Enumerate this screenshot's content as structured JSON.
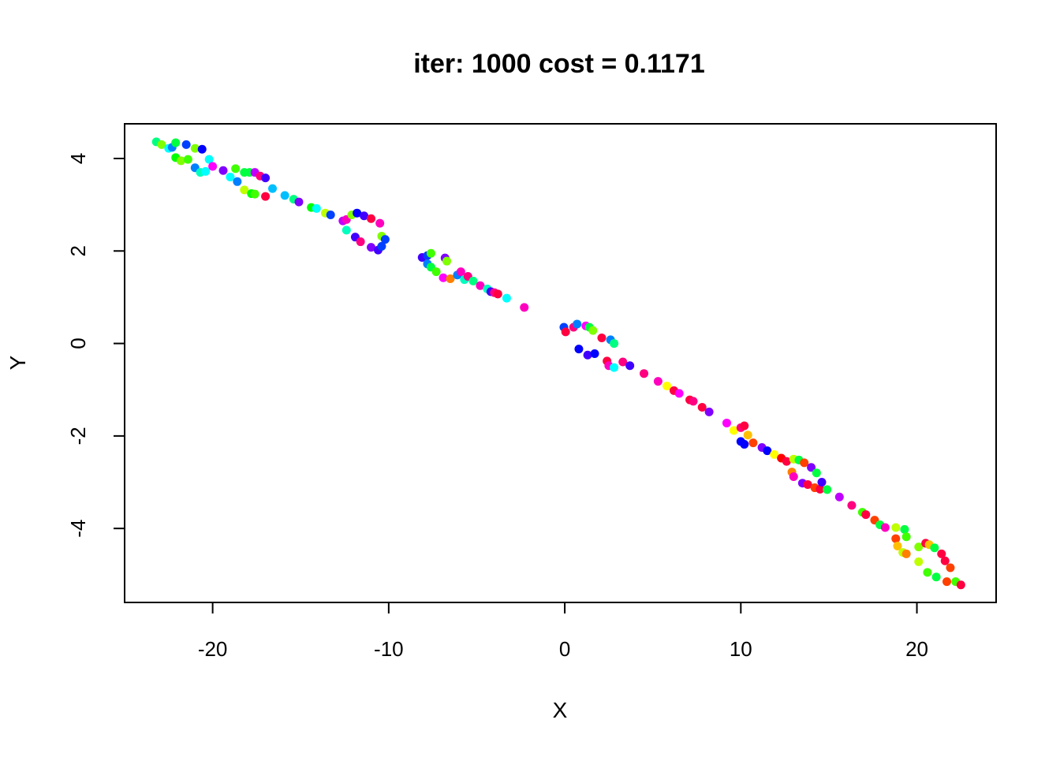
{
  "chart_data": {
    "type": "scatter",
    "title": "iter: 1000 cost = 0.1171",
    "xlabel": "X",
    "ylabel": "Y",
    "xlim": [
      -25,
      24.5
    ],
    "ylim": [
      -5.6,
      4.75
    ],
    "xticks": [
      -20,
      -10,
      0,
      10,
      20
    ],
    "yticks": [
      -4,
      -2,
      0,
      2,
      4
    ],
    "grid": false,
    "legend": "none",
    "points": [
      {
        "x": -23.2,
        "y": 4.36,
        "c": "#00ff80"
      },
      {
        "x": -22.9,
        "y": 4.3,
        "c": "#80ff00"
      },
      {
        "x": -22.5,
        "y": 4.22,
        "c": "#00ffff"
      },
      {
        "x": -22.3,
        "y": 4.24,
        "c": "#0080ff"
      },
      {
        "x": -22.1,
        "y": 4.34,
        "c": "#00ff40"
      },
      {
        "x": -21.5,
        "y": 4.3,
        "c": "#0040ff"
      },
      {
        "x": -21.0,
        "y": 4.22,
        "c": "#80ff00"
      },
      {
        "x": -20.6,
        "y": 4.2,
        "c": "#0000ff"
      },
      {
        "x": -22.1,
        "y": 4.02,
        "c": "#00ff00"
      },
      {
        "x": -21.8,
        "y": 3.95,
        "c": "#80ff00"
      },
      {
        "x": -21.4,
        "y": 3.98,
        "c": "#40ff00"
      },
      {
        "x": -21.0,
        "y": 3.8,
        "c": "#0080ff"
      },
      {
        "x": -20.7,
        "y": 3.7,
        "c": "#00ffbf"
      },
      {
        "x": -20.4,
        "y": 3.72,
        "c": "#00ffff"
      },
      {
        "x": -20.2,
        "y": 3.98,
        "c": "#00ffff"
      },
      {
        "x": -20.0,
        "y": 3.83,
        "c": "#ff00ff"
      },
      {
        "x": -19.4,
        "y": 3.74,
        "c": "#8000ff"
      },
      {
        "x": -19.0,
        "y": 3.6,
        "c": "#00ffff"
      },
      {
        "x": -18.7,
        "y": 3.78,
        "c": "#40ff00"
      },
      {
        "x": -18.2,
        "y": 3.7,
        "c": "#00ff40"
      },
      {
        "x": -17.9,
        "y": 3.7,
        "c": "#00ff40"
      },
      {
        "x": -17.6,
        "y": 3.7,
        "c": "#bf00ff"
      },
      {
        "x": -17.3,
        "y": 3.62,
        "c": "#ff0080"
      },
      {
        "x": -17.0,
        "y": 3.58,
        "c": "#4000ff"
      },
      {
        "x": -18.6,
        "y": 3.5,
        "c": "#0080ff"
      },
      {
        "x": -18.2,
        "y": 3.32,
        "c": "#bfff00"
      },
      {
        "x": -17.8,
        "y": 3.24,
        "c": "#00ff00"
      },
      {
        "x": -17.6,
        "y": 3.23,
        "c": "#40ff00"
      },
      {
        "x": -17.0,
        "y": 3.18,
        "c": "#ff0040"
      },
      {
        "x": -16.6,
        "y": 3.35,
        "c": "#00bfff"
      },
      {
        "x": -15.9,
        "y": 3.2,
        "c": "#00bfff"
      },
      {
        "x": -15.4,
        "y": 3.12,
        "c": "#00ff80"
      },
      {
        "x": -15.1,
        "y": 3.06,
        "c": "#8000ff"
      },
      {
        "x": -14.4,
        "y": 2.94,
        "c": "#00ff00"
      },
      {
        "x": -14.1,
        "y": 2.92,
        "c": "#00ffff"
      },
      {
        "x": -13.6,
        "y": 2.82,
        "c": "#bfff00"
      },
      {
        "x": -13.3,
        "y": 2.78,
        "c": "#0040ff"
      },
      {
        "x": -12.6,
        "y": 2.65,
        "c": "#bf00ff"
      },
      {
        "x": -12.4,
        "y": 2.68,
        "c": "#ff00bf"
      },
      {
        "x": -12.1,
        "y": 2.78,
        "c": "#80ff00"
      },
      {
        "x": -11.8,
        "y": 2.82,
        "c": "#0000ff"
      },
      {
        "x": -11.4,
        "y": 2.76,
        "c": "#4000ff"
      },
      {
        "x": -11.0,
        "y": 2.7,
        "c": "#ff0040"
      },
      {
        "x": -10.5,
        "y": 2.6,
        "c": "#ff00bf"
      },
      {
        "x": -12.4,
        "y": 2.45,
        "c": "#00ffbf"
      },
      {
        "x": -11.9,
        "y": 2.3,
        "c": "#4000ff"
      },
      {
        "x": -11.6,
        "y": 2.2,
        "c": "#ff0080"
      },
      {
        "x": -11.0,
        "y": 2.08,
        "c": "#8000ff"
      },
      {
        "x": -10.6,
        "y": 2.02,
        "c": "#4000ff"
      },
      {
        "x": -10.4,
        "y": 2.1,
        "c": "#0040ff"
      },
      {
        "x": -10.4,
        "y": 2.32,
        "c": "#80ff00"
      },
      {
        "x": -10.2,
        "y": 2.25,
        "c": "#0040ff"
      },
      {
        "x": -8.1,
        "y": 1.86,
        "c": "#4000ff"
      },
      {
        "x": -7.8,
        "y": 1.9,
        "c": "#0040ff"
      },
      {
        "x": -7.6,
        "y": 1.95,
        "c": "#40ff00"
      },
      {
        "x": -7.8,
        "y": 1.72,
        "c": "#0080ff"
      },
      {
        "x": -7.6,
        "y": 1.65,
        "c": "#00ff40"
      },
      {
        "x": -6.8,
        "y": 1.85,
        "c": "#8000ff"
      },
      {
        "x": -6.7,
        "y": 1.78,
        "c": "#80ff00"
      },
      {
        "x": -7.3,
        "y": 1.55,
        "c": "#40ff00"
      },
      {
        "x": -6.9,
        "y": 1.42,
        "c": "#ff00ff"
      },
      {
        "x": -6.5,
        "y": 1.4,
        "c": "#ff8000"
      },
      {
        "x": -6.1,
        "y": 1.48,
        "c": "#0080ff"
      },
      {
        "x": -5.9,
        "y": 1.55,
        "c": "#ff00bf"
      },
      {
        "x": -5.7,
        "y": 1.38,
        "c": "#00ffbf"
      },
      {
        "x": -5.5,
        "y": 1.45,
        "c": "#ff0080"
      },
      {
        "x": -5.2,
        "y": 1.35,
        "c": "#00ff80"
      },
      {
        "x": -4.8,
        "y": 1.25,
        "c": "#ff00bf"
      },
      {
        "x": -4.4,
        "y": 1.18,
        "c": "#00ffbf"
      },
      {
        "x": -4.2,
        "y": 1.12,
        "c": "#4000ff"
      },
      {
        "x": -4.0,
        "y": 1.1,
        "c": "#ff0080"
      },
      {
        "x": -3.8,
        "y": 1.07,
        "c": "#ff0040"
      },
      {
        "x": -3.3,
        "y": 0.98,
        "c": "#00ffff"
      },
      {
        "x": -2.3,
        "y": 0.78,
        "c": "#ff00bf"
      },
      {
        "x": -0.05,
        "y": 0.35,
        "c": "#0040ff"
      },
      {
        "x": 0.05,
        "y": 0.25,
        "c": "#ff0040"
      },
      {
        "x": 0.5,
        "y": 0.35,
        "c": "#ff0080"
      },
      {
        "x": 0.7,
        "y": 0.42,
        "c": "#0080ff"
      },
      {
        "x": 1.2,
        "y": 0.38,
        "c": "#ff00ff"
      },
      {
        "x": 1.4,
        "y": 0.35,
        "c": "#00ff40"
      },
      {
        "x": 1.6,
        "y": 0.28,
        "c": "#80ff00"
      },
      {
        "x": 2.1,
        "y": 0.12,
        "c": "#ff0040"
      },
      {
        "x": 2.6,
        "y": 0.08,
        "c": "#0080ff"
      },
      {
        "x": 2.8,
        "y": 0.0,
        "c": "#00ff80"
      },
      {
        "x": 0.8,
        "y": -0.12,
        "c": "#0000ff"
      },
      {
        "x": 1.3,
        "y": -0.25,
        "c": "#4000ff"
      },
      {
        "x": 1.7,
        "y": -0.22,
        "c": "#0000ff"
      },
      {
        "x": 2.4,
        "y": -0.38,
        "c": "#ff0040"
      },
      {
        "x": 2.5,
        "y": -0.48,
        "c": "#ff00bf"
      },
      {
        "x": 2.8,
        "y": -0.52,
        "c": "#00ffff"
      },
      {
        "x": 3.3,
        "y": -0.4,
        "c": "#ff0080"
      },
      {
        "x": 3.7,
        "y": -0.48,
        "c": "#4000ff"
      },
      {
        "x": 4.5,
        "y": -0.65,
        "c": "#ff0080"
      },
      {
        "x": 5.3,
        "y": -0.82,
        "c": "#ff00bf"
      },
      {
        "x": 5.8,
        "y": -0.92,
        "c": "#ffff00"
      },
      {
        "x": 6.2,
        "y": -1.02,
        "c": "#ff0040"
      },
      {
        "x": 6.5,
        "y": -1.08,
        "c": "#ff00ff"
      },
      {
        "x": 7.1,
        "y": -1.22,
        "c": "#ff0040"
      },
      {
        "x": 7.3,
        "y": -1.25,
        "c": "#ff0080"
      },
      {
        "x": 7.8,
        "y": -1.38,
        "c": "#ff0040"
      },
      {
        "x": 8.2,
        "y": -1.48,
        "c": "#8000ff"
      },
      {
        "x": 9.2,
        "y": -1.72,
        "c": "#ff00ff"
      },
      {
        "x": 9.6,
        "y": -1.88,
        "c": "#ffff00"
      },
      {
        "x": 10.0,
        "y": -1.82,
        "c": "#ff0080"
      },
      {
        "x": 10.2,
        "y": -1.78,
        "c": "#ff0040"
      },
      {
        "x": 10.4,
        "y": -1.98,
        "c": "#ffbf00"
      },
      {
        "x": 10.0,
        "y": -2.12,
        "c": "#0000ff"
      },
      {
        "x": 10.2,
        "y": -2.18,
        "c": "#0000ff"
      },
      {
        "x": 10.7,
        "y": -2.15,
        "c": "#ff4000"
      },
      {
        "x": 11.2,
        "y": -2.25,
        "c": "#8000ff"
      },
      {
        "x": 11.5,
        "y": -2.32,
        "c": "#0000ff"
      },
      {
        "x": 11.9,
        "y": -2.4,
        "c": "#ffff00"
      },
      {
        "x": 12.3,
        "y": -2.48,
        "c": "#ff0000"
      },
      {
        "x": 12.6,
        "y": -2.55,
        "c": "#ff0040"
      },
      {
        "x": 13.0,
        "y": -2.5,
        "c": "#bfff00"
      },
      {
        "x": 13.3,
        "y": -2.52,
        "c": "#00ff40"
      },
      {
        "x": 13.6,
        "y": -2.58,
        "c": "#ff4000"
      },
      {
        "x": 12.9,
        "y": -2.78,
        "c": "#ff8000"
      },
      {
        "x": 13.0,
        "y": -2.88,
        "c": "#ff00bf"
      },
      {
        "x": 13.5,
        "y": -3.02,
        "c": "#8000ff"
      },
      {
        "x": 13.8,
        "y": -3.05,
        "c": "#ff0040"
      },
      {
        "x": 14.0,
        "y": -2.68,
        "c": "#8000ff"
      },
      {
        "x": 14.3,
        "y": -2.8,
        "c": "#00ff40"
      },
      {
        "x": 14.2,
        "y": -3.12,
        "c": "#ff4000"
      },
      {
        "x": 14.5,
        "y": -3.15,
        "c": "#ff0040"
      },
      {
        "x": 14.6,
        "y": -3.0,
        "c": "#4000ff"
      },
      {
        "x": 14.9,
        "y": -3.16,
        "c": "#00ff40"
      },
      {
        "x": 15.6,
        "y": -3.32,
        "c": "#bf00ff"
      },
      {
        "x": 16.3,
        "y": -3.5,
        "c": "#ff0080"
      },
      {
        "x": 16.9,
        "y": -3.65,
        "c": "#40ff00"
      },
      {
        "x": 17.1,
        "y": -3.7,
        "c": "#ff0040"
      },
      {
        "x": 17.6,
        "y": -3.82,
        "c": "#ff4000"
      },
      {
        "x": 17.9,
        "y": -3.92,
        "c": "#00ff40"
      },
      {
        "x": 18.2,
        "y": -3.98,
        "c": "#ff00bf"
      },
      {
        "x": 18.8,
        "y": -3.98,
        "c": "#bfff00"
      },
      {
        "x": 19.3,
        "y": -4.02,
        "c": "#00ff40"
      },
      {
        "x": 18.8,
        "y": -4.22,
        "c": "#ff4000"
      },
      {
        "x": 19.4,
        "y": -4.18,
        "c": "#40ff00"
      },
      {
        "x": 18.9,
        "y": -4.38,
        "c": "#ffbf00"
      },
      {
        "x": 19.2,
        "y": -4.52,
        "c": "#bfff00"
      },
      {
        "x": 19.4,
        "y": -4.55,
        "c": "#ff8000"
      },
      {
        "x": 20.1,
        "y": -4.4,
        "c": "#80ff00"
      },
      {
        "x": 20.5,
        "y": -4.32,
        "c": "#ff0040"
      },
      {
        "x": 20.7,
        "y": -4.35,
        "c": "#ffbf00"
      },
      {
        "x": 21.0,
        "y": -4.42,
        "c": "#00ff40"
      },
      {
        "x": 21.4,
        "y": -4.55,
        "c": "#ff0040"
      },
      {
        "x": 21.6,
        "y": -4.7,
        "c": "#ff0040"
      },
      {
        "x": 21.9,
        "y": -4.85,
        "c": "#ff4000"
      },
      {
        "x": 20.1,
        "y": -4.72,
        "c": "#bfff00"
      },
      {
        "x": 20.6,
        "y": -4.95,
        "c": "#40ff00"
      },
      {
        "x": 21.1,
        "y": -5.05,
        "c": "#00ff40"
      },
      {
        "x": 21.7,
        "y": -5.15,
        "c": "#ff4000"
      },
      {
        "x": 22.2,
        "y": -5.15,
        "c": "#40ff00"
      },
      {
        "x": 22.5,
        "y": -5.22,
        "c": "#ff0040"
      }
    ]
  }
}
